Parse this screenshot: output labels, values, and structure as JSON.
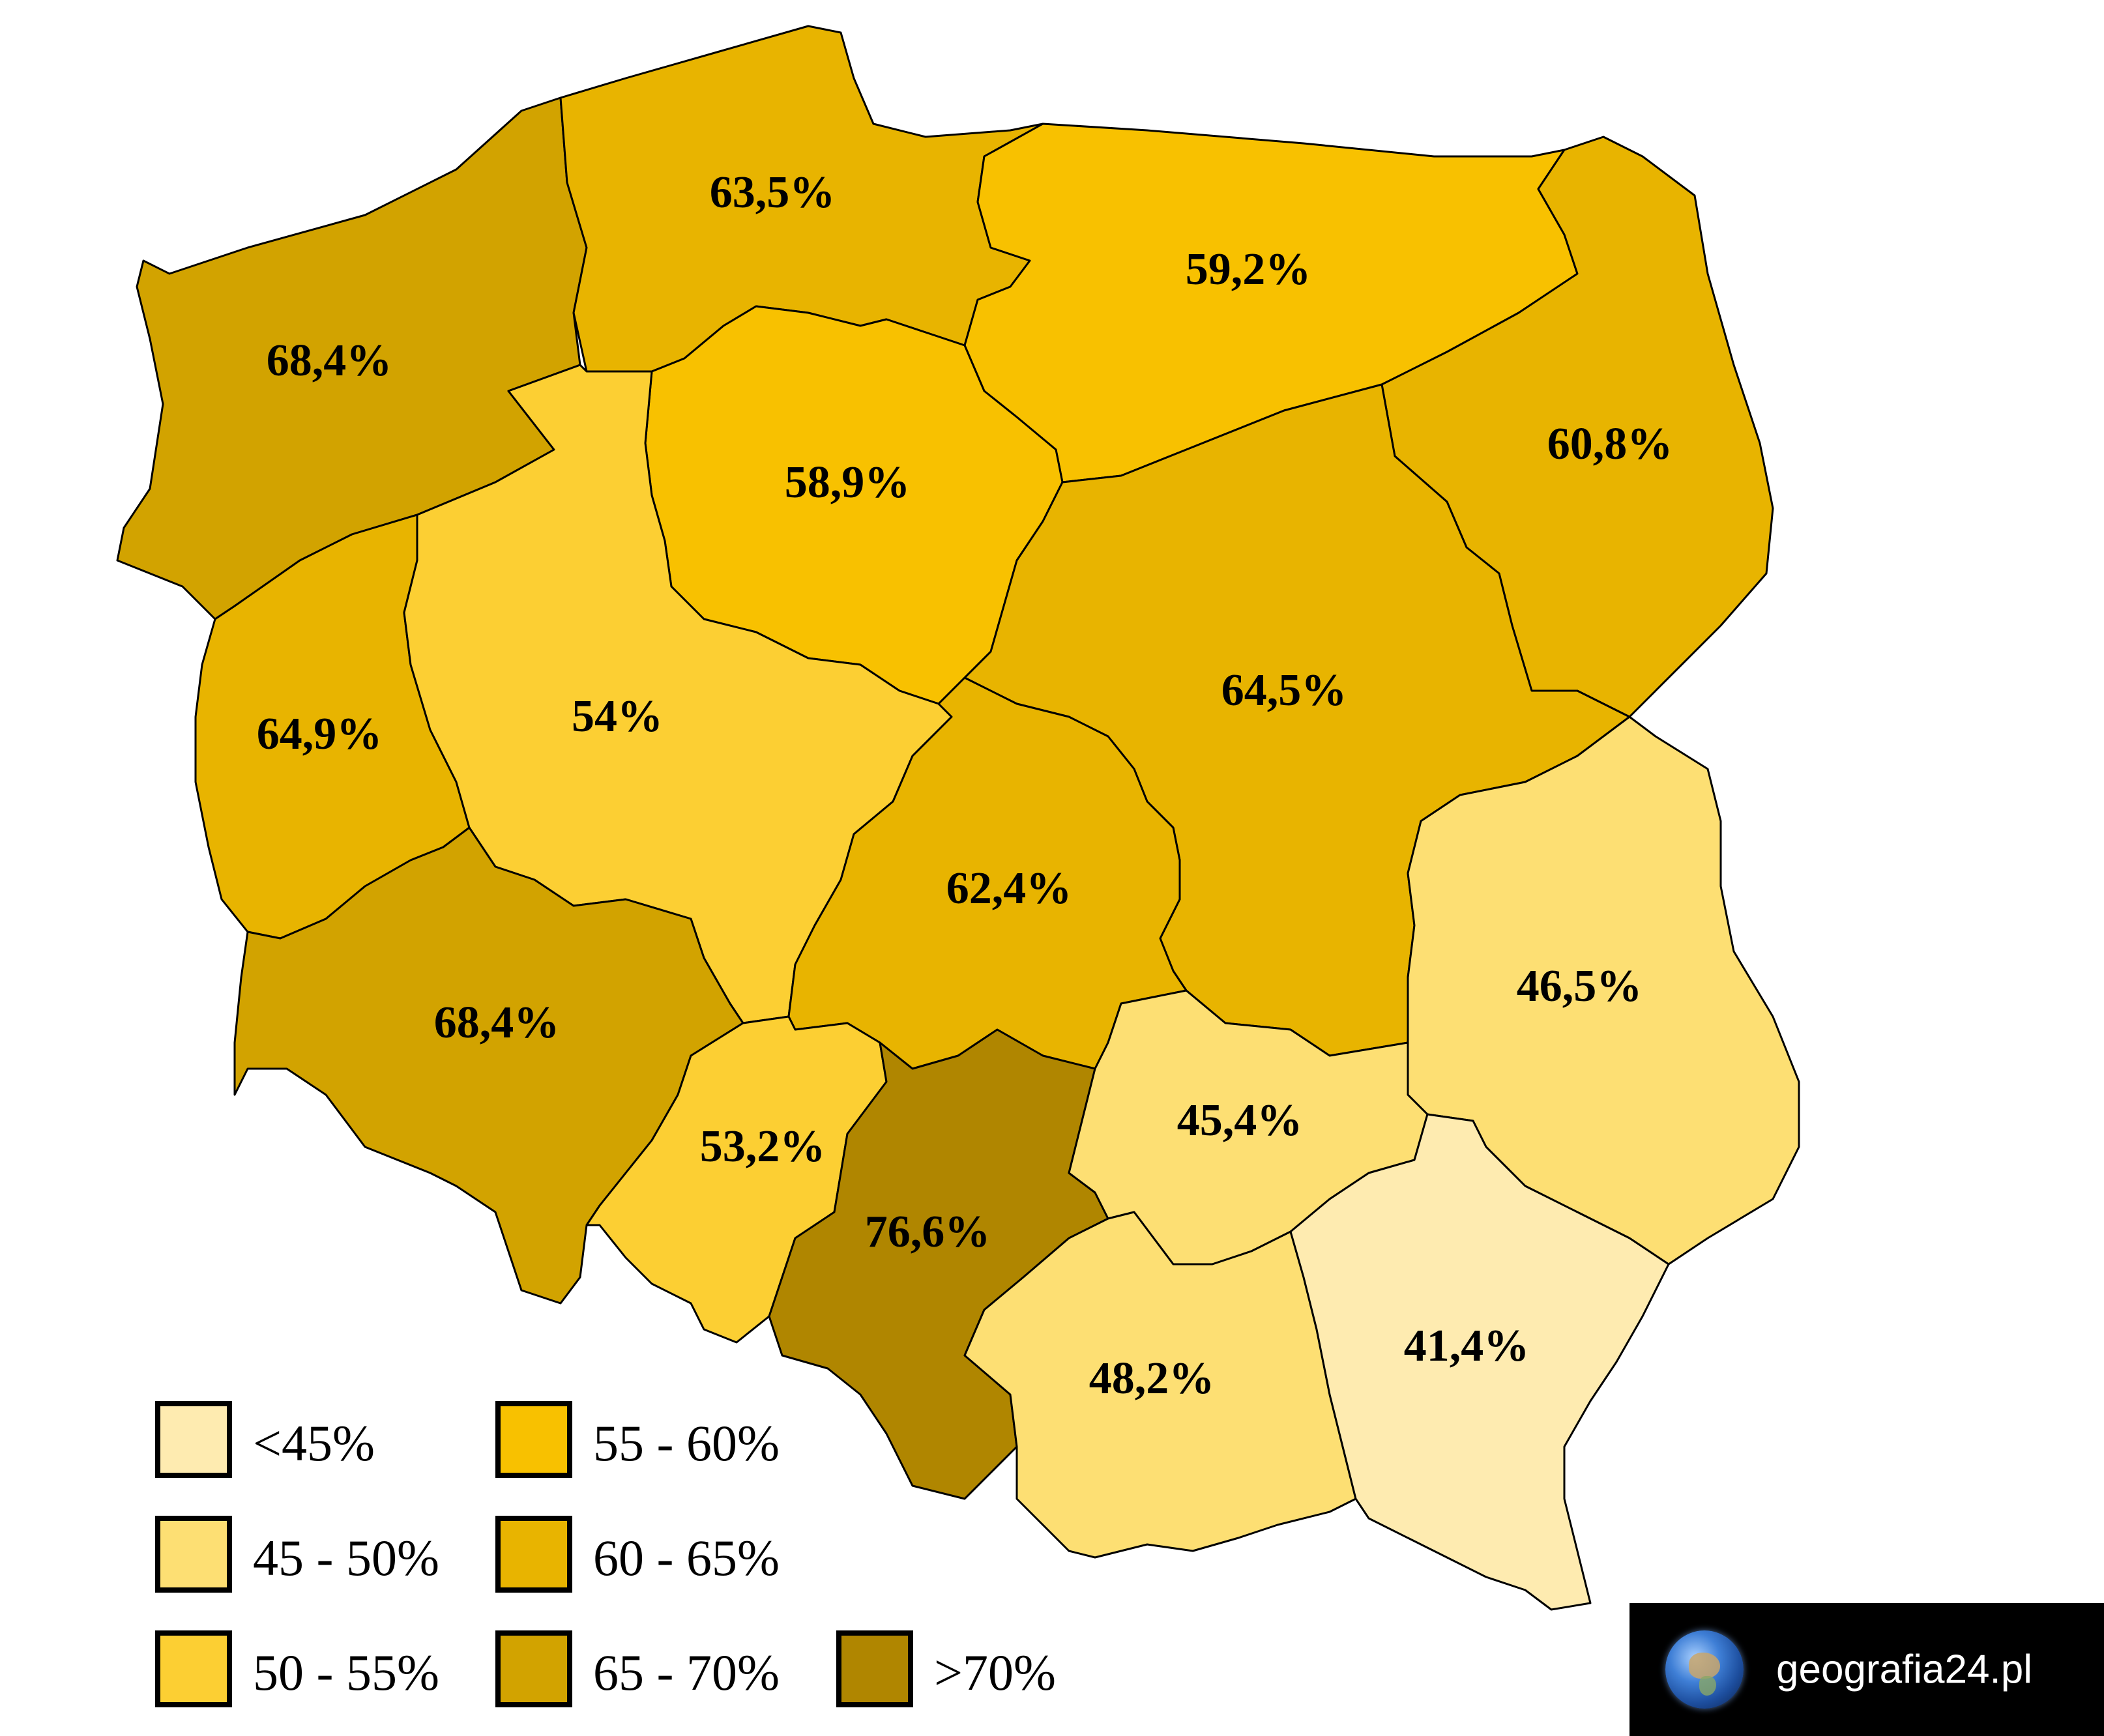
{
  "map": {
    "regions": [
      {
        "id": "zachodniopomorskie",
        "value": "68,4%",
        "class": "65 - 70%"
      },
      {
        "id": "pomorskie",
        "value": "63,5%",
        "class": "60 - 65%"
      },
      {
        "id": "warminsko-mazurskie",
        "value": "59,2%",
        "class": "55 - 60%"
      },
      {
        "id": "podlaskie",
        "value": "60,8%",
        "class": "60 - 65%"
      },
      {
        "id": "kujawsko-pomorskie",
        "value": "58,9%",
        "class": "55 - 60%"
      },
      {
        "id": "lubuskie",
        "value": "64,9%",
        "class": "60 - 65%"
      },
      {
        "id": "wielkopolskie",
        "value": "54%",
        "class": "50 - 55%"
      },
      {
        "id": "mazowieckie",
        "value": "64,5%",
        "class": "60 - 65%"
      },
      {
        "id": "lodzkie",
        "value": "62,4%",
        "class": "60 - 65%"
      },
      {
        "id": "lubelskie",
        "value": "46,5%",
        "class": "45 - 50%"
      },
      {
        "id": "dolnoslaskie",
        "value": "68,4%",
        "class": "65 - 70%"
      },
      {
        "id": "opolskie",
        "value": "53,2%",
        "class": "50 - 55%"
      },
      {
        "id": "slaskie",
        "value": "76,6%",
        "class": ">70%"
      },
      {
        "id": "swietokrzyskie",
        "value": "45,4%",
        "class": "45 - 50%"
      },
      {
        "id": "malopolskie",
        "value": "48,2%",
        "class": "45 - 50%"
      },
      {
        "id": "podkarpackie",
        "value": "41,4%",
        "class": "<45%"
      }
    ]
  },
  "legend": {
    "items": [
      {
        "label": "<45%",
        "color": "#FEEBB0"
      },
      {
        "label": "45 - 50%",
        "color": "#FDDF73"
      },
      {
        "label": "50 - 55%",
        "color": "#FCCF33"
      },
      {
        "label": "55 - 60%",
        "color": "#F8C100"
      },
      {
        "label": "60 - 65%",
        "color": "#E8B400"
      },
      {
        "label": "65 - 70%",
        "color": "#D2A300"
      },
      {
        "label": ">70%",
        "color": "#B08600"
      }
    ]
  },
  "brand": {
    "text": "geografia24.pl",
    "icon": "globe-icon"
  }
}
